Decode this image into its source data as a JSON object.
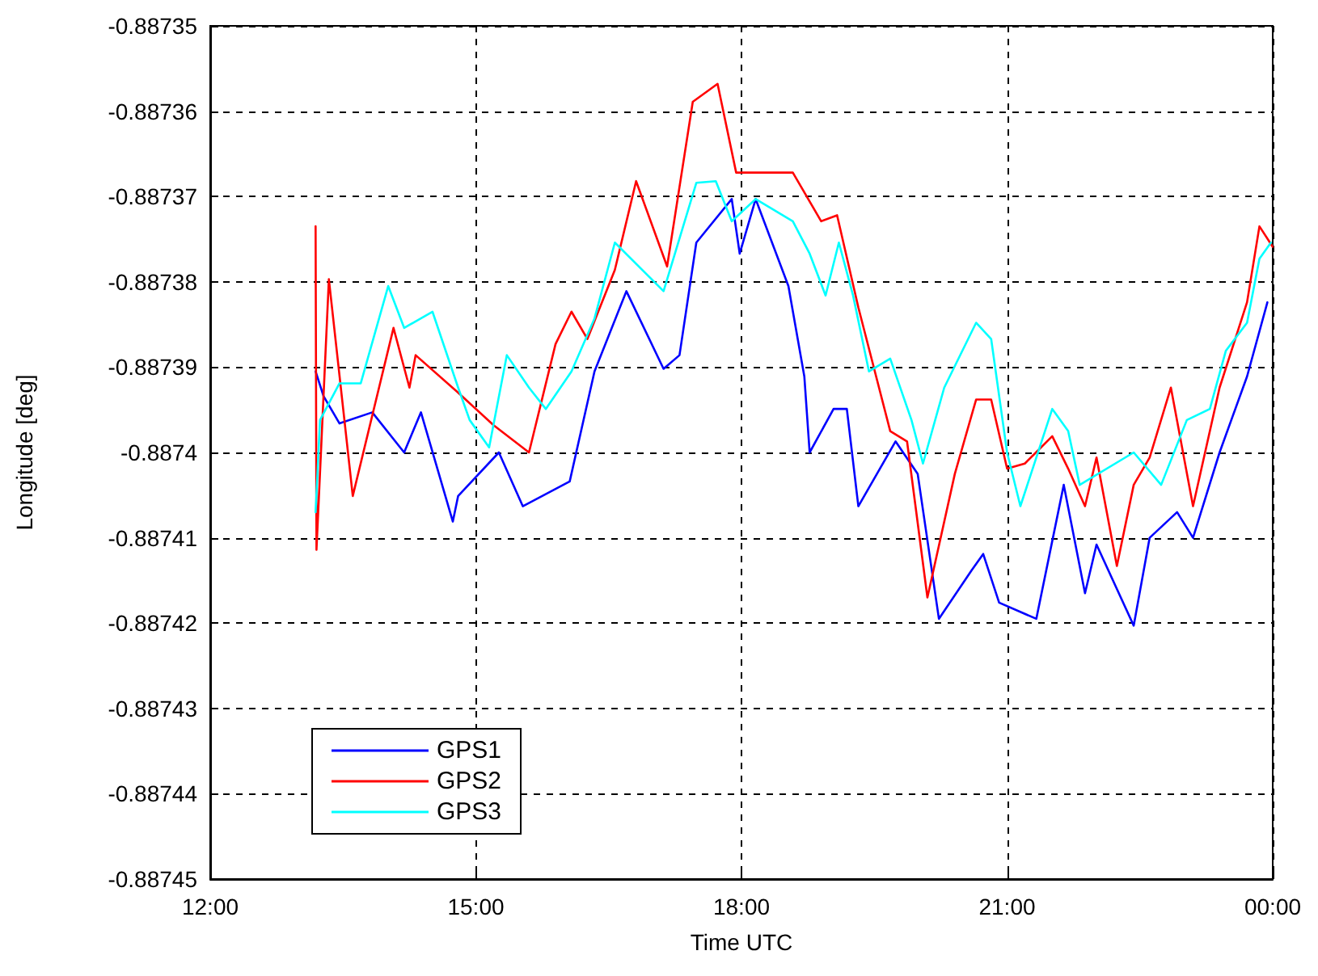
{
  "chart_data": {
    "type": "line",
    "xlabel": "Time UTC",
    "ylabel": "Longitude [deg]",
    "xlim": [
      12,
      24
    ],
    "xticks": [
      {
        "value": 12,
        "label": "12:00"
      },
      {
        "value": 15,
        "label": "15:00"
      },
      {
        "value": 18,
        "label": "18:00"
      },
      {
        "value": 21,
        "label": "21:00"
      },
      {
        "value": 24,
        "label": "00:00"
      }
    ],
    "ylim": [
      -0.88745,
      -0.88735
    ],
    "yticks": [
      -0.88745,
      -0.88744,
      -0.88743,
      -0.88742,
      -0.88741,
      -0.8874,
      -0.88739,
      -0.88738,
      -0.88737,
      -0.88736,
      -0.88735
    ],
    "grid": true,
    "legend": "bottom left",
    "series": [
      {
        "name": "GPS1",
        "color": "#0000ff",
        "x": [
          13.19,
          13.28,
          13.46,
          13.83,
          14.19,
          14.38,
          14.74,
          14.8,
          15.26,
          15.53,
          16.06,
          16.34,
          16.7,
          17.12,
          17.3,
          17.49,
          17.89,
          17.98,
          18.16,
          18.53,
          18.71,
          18.77,
          19.04,
          19.19,
          19.32,
          19.74,
          19.99,
          20.23,
          20.6,
          20.73,
          20.91,
          21.33,
          21.64,
          21.88,
          22.01,
          22.43,
          22.61,
          22.92,
          23.1,
          23.4,
          23.71,
          23.94
        ],
        "values": [
          -0.8873905,
          -0.8873934,
          -0.8873966,
          -0.8873953,
          -0.8874,
          -0.8873953,
          -0.8874081,
          -0.8874051,
          -0.8874,
          -0.8874063,
          -0.8874034,
          -0.8873905,
          -0.8873811,
          -0.8873902,
          -0.8873886,
          -0.8873754,
          -0.8873703,
          -0.8873767,
          -0.8873703,
          -0.8873805,
          -0.8873911,
          -0.8874,
          -0.8873949,
          -0.8873949,
          -0.8874063,
          -0.8873987,
          -0.8874025,
          -0.8874195,
          -0.8874138,
          -0.8874119,
          -0.8874176,
          -0.8874195,
          -0.8874038,
          -0.8874165,
          -0.8874108,
          -0.8874203,
          -0.88741,
          -0.887407,
          -0.88741,
          -0.8874,
          -0.8873911,
          -0.8873824
        ]
      },
      {
        "name": "GPS2",
        "color": "#ff0000",
        "x": [
          13.19,
          13.2,
          13.34,
          13.61,
          14.07,
          14.25,
          14.32,
          14.8,
          15.2,
          15.6,
          15.9,
          16.08,
          16.26,
          16.57,
          16.81,
          17.16,
          17.45,
          17.73,
          17.94,
          18.58,
          18.9,
          19.08,
          19.32,
          19.68,
          19.87,
          20.1,
          20.41,
          20.65,
          20.82,
          21.0,
          21.2,
          21.51,
          21.69,
          21.88,
          22.01,
          22.24,
          22.43,
          22.61,
          22.85,
          23.1,
          23.4,
          23.71,
          23.85,
          24.0
        ],
        "values": [
          -0.8873735,
          -0.8874114,
          -0.8873797,
          -0.8874051,
          -0.8873854,
          -0.8873924,
          -0.8873886,
          -0.887393,
          -0.8873968,
          -0.8874,
          -0.8873873,
          -0.8873835,
          -0.8873867,
          -0.8873786,
          -0.8873682,
          -0.8873782,
          -0.8873589,
          -0.8873568,
          -0.8873672,
          -0.8873672,
          -0.8873729,
          -0.8873722,
          -0.887383,
          -0.8873975,
          -0.8873987,
          -0.887417,
          -0.8874025,
          -0.8873938,
          -0.8873938,
          -0.8874019,
          -0.8874013,
          -0.8873981,
          -0.8874019,
          -0.8874063,
          -0.8874006,
          -0.8874133,
          -0.8874038,
          -0.8874006,
          -0.8873924,
          -0.8874063,
          -0.8873924,
          -0.8873824,
          -0.8873735,
          -0.8873759
        ]
      },
      {
        "name": "GPS3",
        "color": "#00ffff",
        "x": [
          13.19,
          13.24,
          13.46,
          13.7,
          14.01,
          14.19,
          14.51,
          14.8,
          14.93,
          15.15,
          15.35,
          15.6,
          15.79,
          16.08,
          16.34,
          16.57,
          17.12,
          17.49,
          17.71,
          17.89,
          18.16,
          18.58,
          18.77,
          18.95,
          19.1,
          19.26,
          19.44,
          19.68,
          19.92,
          20.05,
          20.29,
          20.65,
          20.82,
          21.0,
          21.15,
          21.51,
          21.69,
          21.82,
          22.43,
          22.74,
          23.03,
          23.29,
          23.47,
          23.71,
          23.85,
          23.98
        ],
        "values": [
          -0.887407,
          -0.8873962,
          -0.8873919,
          -0.8873919,
          -0.8873805,
          -0.8873854,
          -0.8873835,
          -0.8873924,
          -0.8873962,
          -0.8873994,
          -0.8873886,
          -0.8873924,
          -0.8873949,
          -0.8873905,
          -0.8873843,
          -0.8873754,
          -0.8873811,
          -0.8873684,
          -0.8873682,
          -0.8873729,
          -0.8873703,
          -0.8873729,
          -0.8873767,
          -0.8873816,
          -0.8873754,
          -0.8873816,
          -0.8873905,
          -0.887389,
          -0.8873962,
          -0.8874013,
          -0.8873924,
          -0.8873848,
          -0.8873867,
          -0.8874,
          -0.8874063,
          -0.8873949,
          -0.8873975,
          -0.8874038,
          -0.8874,
          -0.8874038,
          -0.8873962,
          -0.8873949,
          -0.8873881,
          -0.8873848,
          -0.8873773,
          -0.8873754
        ]
      }
    ]
  }
}
